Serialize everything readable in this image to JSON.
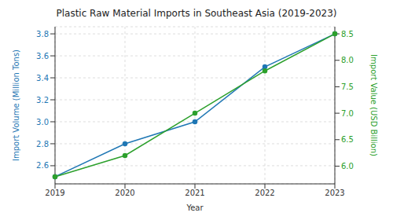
{
  "chart_data": {
    "type": "line",
    "title": "Plastic Raw Material Imports in Southeast Asia (2019-2023)",
    "x_label": "Year",
    "y_label": "Import Volume (Million Tons)",
    "y2_label": "Import Value (USD Billion)",
    "categories": [
      "2019",
      "2020",
      "2021",
      "2022",
      "2023"
    ],
    "series": [
      {
        "color": "#1f77b4",
        "marker": "circle",
        "values": [
          2.5,
          2.8,
          3.0,
          3.5,
          3.8
        ]
      },
      {
        "color": "#2ca02c",
        "marker": "circle",
        "axis": "y2",
        "values": [
          5.8,
          6.2,
          7.0,
          7.8,
          8.5
        ]
      }
    ],
    "ylim": [
      2.435,
      3.865
    ],
    "yticks": [
      2.6,
      2.8,
      {
        "value": 3,
        "label": "3.0"
      },
      3.2,
      3.4,
      3.6,
      3.8
    ],
    "y2lim": [
      5.665,
      8.635
    ],
    "y2ticks": [
      {
        "value": 6,
        "label": "6.0"
      },
      6.5,
      {
        "value": 7,
        "label": "7.0"
      },
      7.5,
      {
        "value": 8,
        "label": "8.0"
      },
      8.5
    ],
    "grid": true
  }
}
